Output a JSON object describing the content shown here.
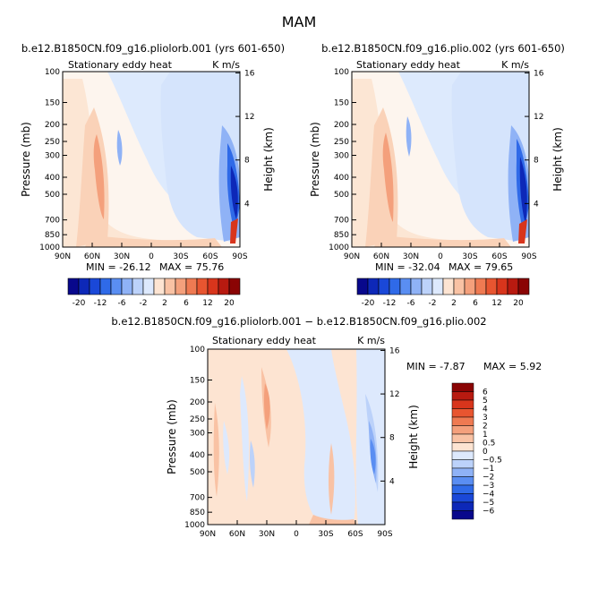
{
  "figure": {
    "title": "MAM"
  },
  "chart_data": [
    {
      "type": "heatmap",
      "id": "p1",
      "run_title": "b.e12.B1850CN.f09_g16.pliolorb.001 (yrs 601-650)",
      "left_string": "Stationary eddy heat",
      "right_string": "K m/s",
      "ylabel": "Pressure (mb)",
      "ylabel_right": "Height (km)",
      "x_ticks": [
        "90N",
        "60N",
        "30N",
        "0",
        "30S",
        "60S",
        "90S"
      ],
      "y_ticks": [
        "100",
        "150",
        "200",
        "250",
        "300",
        "400",
        "500",
        "700",
        "850",
        "1000"
      ],
      "y_right_ticks": [
        "4",
        "8",
        "12",
        "16"
      ],
      "min_label": "MIN = -26.12",
      "max_label": "MAX = 75.76",
      "contour_levels": [
        -24,
        -20,
        -16,
        -12,
        -8,
        -6,
        -4,
        -2,
        0,
        2,
        4,
        6,
        8,
        12,
        16,
        20,
        24
      ],
      "colorbar_labels": [
        "-20",
        "-12",
        "-6",
        "-2",
        "2",
        "6",
        "12",
        "20"
      ],
      "ylim": [
        1000,
        100
      ],
      "xlim": [
        "90N",
        "90S"
      ]
    },
    {
      "type": "heatmap",
      "id": "p2",
      "run_title": "b.e12.B1850CN.f09_g16.plio.002 (yrs 601-650)",
      "left_string": "Stationary eddy heat",
      "right_string": "K m/s",
      "ylabel": "Pressure (mb)",
      "ylabel_right": "Height (km)",
      "x_ticks": [
        "90N",
        "60N",
        "30N",
        "0",
        "30S",
        "60S",
        "90S"
      ],
      "y_ticks": [
        "100",
        "150",
        "200",
        "250",
        "300",
        "400",
        "500",
        "700",
        "850",
        "1000"
      ],
      "y_right_ticks": [
        "4",
        "8",
        "12",
        "16"
      ],
      "min_label": "MIN = -32.04",
      "max_label": "MAX = 79.65",
      "contour_levels": [
        -24,
        -20,
        -16,
        -12,
        -8,
        -6,
        -4,
        -2,
        0,
        2,
        4,
        6,
        8,
        12,
        16,
        20,
        24
      ],
      "colorbar_labels": [
        "-20",
        "-12",
        "-6",
        "-2",
        "2",
        "6",
        "12",
        "20"
      ],
      "ylim": [
        1000,
        100
      ],
      "xlim": [
        "90N",
        "90S"
      ]
    },
    {
      "type": "heatmap",
      "id": "p3",
      "run_title": "b.e12.B1850CN.f09_g16.pliolorb.001 − b.e12.B1850CN.f09_g16.plio.002",
      "left_string": "Stationary eddy heat",
      "right_string": "K m/s",
      "ylabel": "Pressure (mb)",
      "ylabel_right": "Height (km)",
      "x_ticks": [
        "90N",
        "60N",
        "30N",
        "0",
        "30S",
        "60S",
        "90S"
      ],
      "y_ticks": [
        "100",
        "150",
        "200",
        "250",
        "300",
        "400",
        "500",
        "700",
        "850",
        "1000"
      ],
      "y_right_ticks": [
        "4",
        "8",
        "12",
        "16"
      ],
      "min_label": "MIN =   -7.87",
      "max_label": "MAX =    5.92",
      "contour_levels": [
        -6,
        -5,
        -4,
        -3,
        -2,
        -1,
        -0.5,
        0,
        0.5,
        1,
        2,
        3,
        4,
        5,
        6
      ],
      "colorbar_labels": [
        "6",
        "5",
        "4",
        "3",
        "2",
        "1",
        "0.5",
        "0",
        "−0.5",
        "−1",
        "−2",
        "−3",
        "−4",
        "−5",
        "−6"
      ],
      "ylim": [
        1000,
        100
      ],
      "xlim": [
        "90N",
        "90S"
      ]
    }
  ],
  "colors": {
    "cbar_top": [
      "#08088c",
      "#0d28b8",
      "#1a48d8",
      "#2f6ae8",
      "#5a8ef2",
      "#8fb2f6",
      "#bcd2fa",
      "#dde9fd",
      "#fde4d2",
      "#f9c2a4",
      "#f4a07c",
      "#ef7a52",
      "#e85530",
      "#d8351c",
      "#b81a10",
      "#8a0404"
    ],
    "cbar_diff": [
      "#8a0404",
      "#b81a10",
      "#d8351c",
      "#e85530",
      "#ef7a52",
      "#f4a07c",
      "#f9c2a4",
      "#fde4d2",
      "#dde9fd",
      "#bcd2fa",
      "#8fb2f6",
      "#5a8ef2",
      "#2f6ae8",
      "#1a48d8",
      "#0d28b8",
      "#08088c"
    ]
  }
}
